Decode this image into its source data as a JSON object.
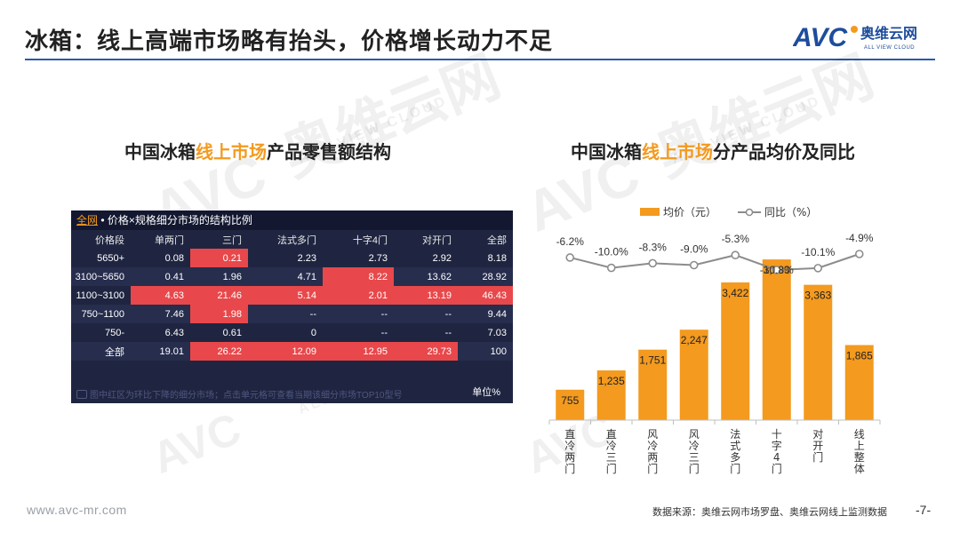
{
  "title": "冰箱：线上高端市场略有抬头，价格增长动力不足",
  "logo": {
    "mark": "AVC",
    "cn": "奥维云网",
    "en": "ALL VIEW CLOUD"
  },
  "watermark": {
    "cn": "奥维云网",
    "en": "ALL VIEW CLOUD",
    "mark": "AVC"
  },
  "left_panel": {
    "title_pre": "中国冰箱",
    "title_hl": "线上市场",
    "title_post": "产品零售额结构",
    "table": {
      "header_link": "全网",
      "header_text": " • 价格×规格细分市场的结构比例",
      "columns": [
        "价格段",
        "单两门",
        "三门",
        "法式多门",
        "十字4门",
        "对开门",
        "全部"
      ],
      "rows": [
        [
          "5650+",
          "0.08",
          "0.21",
          "2.23",
          "2.73",
          "2.92",
          "8.18"
        ],
        [
          "3100~5650",
          "0.41",
          "1.96",
          "4.71",
          "8.22",
          "13.62",
          "28.92"
        ],
        [
          "1100~3100",
          "4.63",
          "21.46",
          "5.14",
          "2.01",
          "13.19",
          "46.43"
        ],
        [
          "750~1100",
          "7.46",
          "1.98",
          "--",
          "--",
          "--",
          "9.44"
        ],
        [
          "750-",
          "6.43",
          "0.61",
          "0",
          "--",
          "--",
          "7.03"
        ],
        [
          "全部",
          "19.01",
          "26.22",
          "12.09",
          "12.95",
          "29.73",
          "100"
        ]
      ],
      "highlight": [
        [
          0,
          2
        ],
        [
          1,
          4
        ],
        [
          2,
          1
        ],
        [
          2,
          2
        ],
        [
          2,
          3
        ],
        [
          2,
          4
        ],
        [
          2,
          5
        ],
        [
          2,
          6
        ],
        [
          3,
          2
        ],
        [
          5,
          2
        ],
        [
          5,
          3
        ],
        [
          5,
          4
        ],
        [
          5,
          5
        ]
      ],
      "note": "图中红区为环比下降的细分市场；点击单元格可查看当期该细分市场TOP10型号",
      "unit": "单位%"
    }
  },
  "right_panel": {
    "title_pre": "中国冰箱",
    "title_hl": "线上市场",
    "title_post": "分产品均价及同比"
  },
  "chart_data": {
    "type": "bar",
    "categories": [
      "直冷两门",
      "直冷三门",
      "风冷两门",
      "风冷三门",
      "法式多门",
      "十字4门",
      "对开门",
      "线上整体"
    ],
    "series": [
      {
        "name": "均价（元）",
        "type": "bar",
        "values": [
          755,
          1235,
          1751,
          2247,
          3422,
          3993,
          3363,
          1865
        ],
        "labels": [
          "755",
          "1,235",
          "1,751",
          "2,247",
          "3,422",
          "3,993",
          "3,363",
          "1,865"
        ]
      },
      {
        "name": "同比（%）",
        "type": "line",
        "values": [
          -6.2,
          -10.0,
          -8.3,
          -9.0,
          -5.3,
          -10.8,
          -10.1,
          -4.9
        ],
        "labels": [
          "-6.2%",
          "-10.0%",
          "-8.3%",
          "-9.0%",
          "-5.3%",
          "-10.8%",
          "-10.1%",
          "-4.9%"
        ]
      }
    ],
    "colors": {
      "bar": "#f39a1f",
      "line": "#8c8c8c"
    },
    "legend": "top-center"
  },
  "footer": {
    "url": "www.avc-mr.com",
    "source": "数据来源：奥维云网市场罗盘、奥维云网线上监测数据",
    "page": "-7-"
  }
}
